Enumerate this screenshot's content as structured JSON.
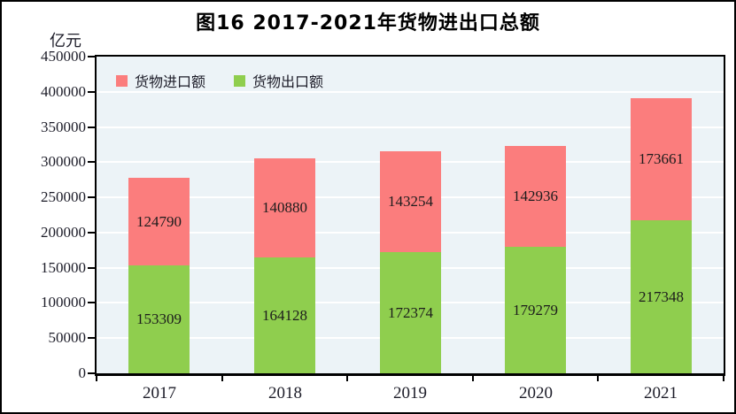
{
  "page": {
    "background": "#ffffff",
    "frame_color": "#000000"
  },
  "chart_data": {
    "type": "bar",
    "stacked": true,
    "title": "图16  2017-2021年货物进出口总额",
    "unit_label": "亿元",
    "categories": [
      "2017",
      "2018",
      "2019",
      "2020",
      "2021"
    ],
    "series": [
      {
        "name": "货物出口额",
        "key": "exports",
        "color": "#8fce4e",
        "values": [
          153309,
          164128,
          172374,
          179279,
          217348
        ]
      },
      {
        "name": "货物进口额",
        "key": "imports",
        "color": "#fb7d7d",
        "values": [
          124790,
          140880,
          143254,
          142936,
          173661
        ]
      }
    ],
    "legend": [
      {
        "label": "货物进口额",
        "key": "imports",
        "color": "#fb7d7d"
      },
      {
        "label": "货物出口额",
        "key": "exports",
        "color": "#8fce4e"
      }
    ],
    "legend_position": "top-left-inside",
    "ylim": [
      0,
      450000
    ],
    "ytick_step": 50000,
    "yticks": [
      0,
      50000,
      100000,
      150000,
      200000,
      250000,
      300000,
      350000,
      400000,
      450000
    ],
    "grid": true,
    "grid_color": "#ffffff",
    "plot_bg": "#ecf3f7",
    "axis_color": "#000000",
    "value_labels_shown": true
  }
}
